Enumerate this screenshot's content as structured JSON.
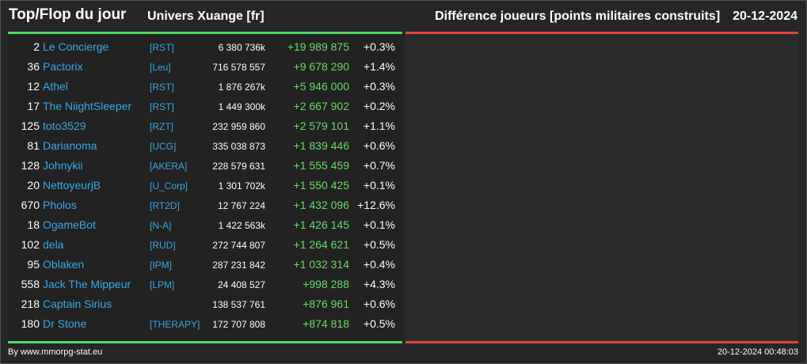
{
  "header": {
    "title": "Top/Flop du jour",
    "universe": "Univers Xuange [fr]",
    "category": "Différence joueurs [points militaires construits]",
    "date": "20-12-2024"
  },
  "colors": {
    "name": "#38a8e8",
    "positive": "#66dd66",
    "top_bar": "#4cd964",
    "flop_bar": "#e0453a"
  },
  "top_rows": [
    {
      "rank": "2",
      "name": "Le Concierge",
      "alliance": "[RST]",
      "total": "6 380 736k",
      "diff": "+19 989 875",
      "pct": "+0.3%"
    },
    {
      "rank": "36",
      "name": "Pactorix",
      "alliance": "[Leu]",
      "total": "716 578 557",
      "diff": "+9 678 290",
      "pct": "+1.4%"
    },
    {
      "rank": "12",
      "name": "Athel",
      "alliance": "[RST]",
      "total": "1 876 267k",
      "diff": "+5 946 000",
      "pct": "+0.3%"
    },
    {
      "rank": "17",
      "name": "The NiightSleeper",
      "alliance": "[RST]",
      "total": "1 449 300k",
      "diff": "+2 667 902",
      "pct": "+0.2%"
    },
    {
      "rank": "125",
      "name": "toto3529",
      "alliance": "[RZT]",
      "total": "232 959 860",
      "diff": "+2 579 101",
      "pct": "+1.1%"
    },
    {
      "rank": "81",
      "name": "Darianoma",
      "alliance": "[UCG]",
      "total": "335 038 873",
      "diff": "+1 839 446",
      "pct": "+0.6%"
    },
    {
      "rank": "128",
      "name": "Johnykii",
      "alliance": "[AKERA]",
      "total": "228 579 631",
      "diff": "+1 555 459",
      "pct": "+0.7%"
    },
    {
      "rank": "20",
      "name": "NettoyeurjB",
      "alliance": "[U_Corp]",
      "total": "1 301 702k",
      "diff": "+1 550 425",
      "pct": "+0.1%"
    },
    {
      "rank": "670",
      "name": "Pholos",
      "alliance": "[RT2D]",
      "total": "12 767 224",
      "diff": "+1 432 096",
      "pct": "+12.6%"
    },
    {
      "rank": "18",
      "name": "OgameBot",
      "alliance": "[N-A]",
      "total": "1 422 563k",
      "diff": "+1 426 145",
      "pct": "+0.1%"
    },
    {
      "rank": "102",
      "name": "dela",
      "alliance": "[RUD]",
      "total": "272 744 807",
      "diff": "+1 264 621",
      "pct": "+0.5%"
    },
    {
      "rank": "95",
      "name": "Oblaken",
      "alliance": "[IPM]",
      "total": "287 231 842",
      "diff": "+1 032 314",
      "pct": "+0.4%"
    },
    {
      "rank": "558",
      "name": "Jack The Mippeur",
      "alliance": "[LPM]",
      "total": "24 408 527",
      "diff": "+998 288",
      "pct": "+4.3%"
    },
    {
      "rank": "218",
      "name": "Captain Sirius",
      "alliance": "",
      "total": "138 537 761",
      "diff": "+876 961",
      "pct": "+0.6%"
    },
    {
      "rank": "180",
      "name": "Dr Stone",
      "alliance": "[THERAPY]",
      "total": "172 707 808",
      "diff": "+874 818",
      "pct": "+0.5%"
    }
  ],
  "footer": {
    "credit": "By www.mmorpg-stat.eu",
    "timestamp": "20-12-2024 00:48:03"
  }
}
